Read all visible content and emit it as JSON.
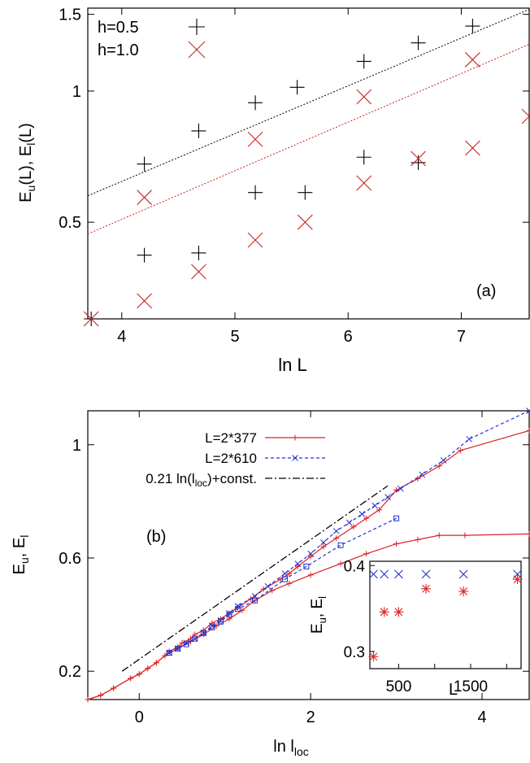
{
  "chart_data": [
    {
      "type": "scatter",
      "panel_label": "(a)",
      "xlabel": "ln L",
      "ylabel_parts": [
        "E",
        "u",
        "(L), E",
        "l",
        "(L)"
      ],
      "xlim": [
        3.7,
        7.6
      ],
      "ylim": [
        0.3,
        1.55
      ],
      "log_y": true,
      "xticks": [
        4,
        5,
        6,
        7
      ],
      "yticks": [
        0.5,
        1,
        1.5
      ],
      "ytick_labels": [
        "0.5",
        "1",
        "1.5"
      ],
      "legend_position": "top-left",
      "series": [
        {
          "name": "h=0.5",
          "marker": "plus",
          "color": "#000000",
          "upper": [
            [
              4.2,
              0.68
            ],
            [
              4.68,
              0.81
            ],
            [
              5.18,
              0.94
            ],
            [
              5.55,
              1.02
            ],
            [
              6.14,
              1.17
            ],
            [
              6.62,
              1.29
            ],
            [
              7.1,
              1.41
            ]
          ],
          "lower": [
            [
              3.73,
              0.3
            ],
            [
              4.2,
              0.42
            ],
            [
              4.68,
              0.425
            ],
            [
              5.18,
              0.585
            ],
            [
              5.62,
              0.585
            ],
            [
              6.14,
              0.705
            ],
            [
              6.62,
              0.685
            ]
          ]
        },
        {
          "name": "h=1.0",
          "marker": "cross",
          "color": "#cc2222",
          "upper": [
            [
              4.2,
              0.57
            ],
            [
              5.18,
              0.775
            ],
            [
              6.14,
              0.97
            ],
            [
              7.1,
              1.18
            ]
          ],
          "lower": [
            [
              3.73,
              0.3
            ],
            [
              4.2,
              0.33
            ],
            [
              4.68,
              0.385
            ],
            [
              5.18,
              0.455
            ],
            [
              5.62,
              0.5
            ],
            [
              6.14,
              0.615
            ],
            [
              6.62,
              0.7
            ],
            [
              7.1,
              0.74
            ],
            [
              7.6,
              0.875
            ]
          ]
        }
      ],
      "fit_lines": [
        {
          "color": "#000000",
          "points": [
            [
              3.7,
              0.575
            ],
            [
              7.6,
              1.54
            ]
          ]
        },
        {
          "color": "#cc2222",
          "points": [
            [
              3.7,
              0.47
            ],
            [
              7.6,
              1.28
            ]
          ]
        }
      ]
    },
    {
      "type": "line",
      "panel_label": "(b)",
      "xlabel_parts": [
        "ln l",
        "loc"
      ],
      "ylabel_parts": [
        "E",
        "u",
        ", E",
        "l"
      ],
      "xlim": [
        -0.6,
        4.55
      ],
      "ylim": [
        0.1,
        1.12
      ],
      "xticks": [
        0,
        2,
        4
      ],
      "yticks": [
        0.2,
        0.6,
        1
      ],
      "ytick_labels": [
        "0.2",
        "0.6",
        "1"
      ],
      "legend_position": "top-center",
      "series": [
        {
          "name": "L=2*377",
          "color": "#dd2222",
          "marker": "plus",
          "dash": "",
          "upper": [
            [
              -0.6,
              0.1
            ],
            [
              -0.45,
              0.115
            ],
            [
              -0.3,
              0.14
            ],
            [
              -0.1,
              0.175
            ],
            [
              0.0,
              0.19
            ],
            [
              0.1,
              0.21
            ],
            [
              0.2,
              0.23
            ],
            [
              0.3,
              0.255
            ],
            [
              0.35,
              0.27
            ],
            [
              0.45,
              0.285
            ],
            [
              0.5,
              0.3
            ],
            [
              0.6,
              0.315
            ],
            [
              0.65,
              0.33
            ],
            [
              0.75,
              0.345
            ],
            [
              0.85,
              0.37
            ],
            [
              0.95,
              0.385
            ],
            [
              1.05,
              0.405
            ],
            [
              1.15,
              0.425
            ],
            [
              1.3,
              0.455
            ],
            [
              1.45,
              0.49
            ],
            [
              1.65,
              0.525
            ],
            [
              1.75,
              0.545
            ],
            [
              1.85,
              0.57
            ],
            [
              2.0,
              0.605
            ],
            [
              2.15,
              0.64
            ],
            [
              2.3,
              0.67
            ],
            [
              2.5,
              0.71
            ],
            [
              2.65,
              0.74
            ],
            [
              2.8,
              0.77
            ],
            [
              3.0,
              0.84
            ],
            [
              3.25,
              0.88
            ],
            [
              3.5,
              0.925
            ],
            [
              3.75,
              0.98
            ],
            [
              4.55,
              1.05
            ]
          ],
          "lower": [
            [
              -0.6,
              0.1
            ],
            [
              -0.45,
              0.115
            ],
            [
              -0.3,
              0.14
            ],
            [
              -0.1,
              0.175
            ],
            [
              0.0,
              0.19
            ],
            [
              0.1,
              0.21
            ],
            [
              0.2,
              0.23
            ],
            [
              0.3,
              0.255
            ],
            [
              0.45,
              0.28
            ],
            [
              0.6,
              0.305
            ],
            [
              0.75,
              0.33
            ],
            [
              0.9,
              0.36
            ],
            [
              1.05,
              0.385
            ],
            [
              1.2,
              0.415
            ],
            [
              1.35,
              0.45
            ],
            [
              1.55,
              0.485
            ],
            [
              1.75,
              0.51
            ],
            [
              2.0,
              0.54
            ],
            [
              2.35,
              0.58
            ],
            [
              2.65,
              0.615
            ],
            [
              3.0,
              0.65
            ],
            [
              3.25,
              0.665
            ],
            [
              3.5,
              0.68
            ],
            [
              3.8,
              0.68
            ],
            [
              4.55,
              0.685
            ]
          ]
        },
        {
          "name": "L=2*610",
          "color": "#2233cc",
          "marker": "x",
          "marker_lower": "square",
          "dash": "4,3",
          "upper": [
            [
              0.35,
              0.265
            ],
            [
              0.45,
              0.28
            ],
            [
              0.55,
              0.3
            ],
            [
              0.65,
              0.315
            ],
            [
              0.75,
              0.335
            ],
            [
              0.85,
              0.36
            ],
            [
              0.95,
              0.38
            ],
            [
              1.05,
              0.405
            ],
            [
              1.15,
              0.43
            ],
            [
              1.35,
              0.465
            ],
            [
              1.5,
              0.5
            ],
            [
              1.7,
              0.545
            ],
            [
              1.85,
              0.58
            ],
            [
              2.0,
              0.615
            ],
            [
              2.15,
              0.655
            ],
            [
              2.3,
              0.695
            ],
            [
              2.45,
              0.725
            ],
            [
              2.6,
              0.755
            ],
            [
              2.75,
              0.785
            ],
            [
              2.9,
              0.815
            ],
            [
              3.05,
              0.845
            ],
            [
              3.3,
              0.895
            ],
            [
              3.55,
              0.945
            ],
            [
              3.85,
              1.02
            ],
            [
              4.55,
              1.12
            ]
          ],
          "lower": [
            [
              0.35,
              0.265
            ],
            [
              0.45,
              0.28
            ],
            [
              0.55,
              0.295
            ],
            [
              0.65,
              0.315
            ],
            [
              0.75,
              0.335
            ],
            [
              0.85,
              0.355
            ],
            [
              0.95,
              0.375
            ],
            [
              1.05,
              0.4
            ],
            [
              1.15,
              0.42
            ],
            [
              1.35,
              0.45
            ],
            [
              1.7,
              0.525
            ],
            [
              1.95,
              0.57
            ],
            [
              2.35,
              0.645
            ],
            [
              3.0,
              0.74
            ]
          ]
        }
      ],
      "reference_line": {
        "name": "0.21 ln(l",
        "name_sub": "loc",
        "name_tail": ")+const.",
        "color": "#000000",
        "dash": "9,3,2,3",
        "points": [
          [
            -0.2,
            0.2
          ],
          [
            2.9,
            0.855
          ]
        ]
      },
      "inset": {
        "xlabel": "L",
        "ylabel_parts": [
          "E",
          "u",
          ", E",
          "l"
        ],
        "xlim": [
          100,
          2200
        ],
        "ylim": [
          0.28,
          0.405
        ],
        "xticks": [
          500,
          1500
        ],
        "xtick_labels": [
          "500",
          "1500"
        ],
        "minor_xticks": [
          1000,
          2000
        ],
        "yticks": [
          0.3,
          0.4
        ],
        "ytick_labels": [
          "0.3",
          "0.4"
        ],
        "blue_points": [
          [
            150,
            0.39
          ],
          [
            300,
            0.39
          ],
          [
            500,
            0.39
          ],
          [
            880,
            0.39
          ],
          [
            1400,
            0.39
          ],
          [
            2150,
            0.39
          ]
        ],
        "red_points": [
          [
            150,
            0.294
          ],
          [
            300,
            0.346
          ],
          [
            500,
            0.346
          ],
          [
            880,
            0.373
          ],
          [
            1400,
            0.37
          ],
          [
            2150,
            0.384
          ]
        ]
      }
    }
  ]
}
